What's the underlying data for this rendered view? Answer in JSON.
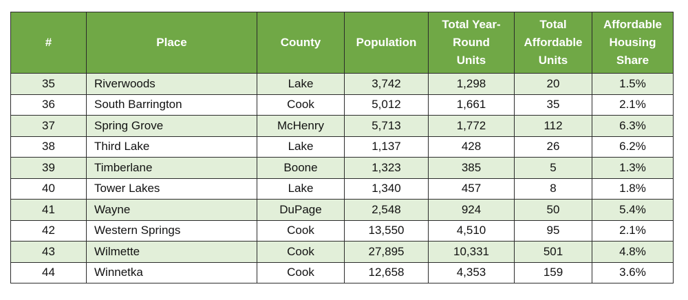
{
  "table": {
    "headers": [
      [
        "#"
      ],
      [
        "Place"
      ],
      [
        "County"
      ],
      [
        "Population"
      ],
      [
        "Total Year-",
        "Round",
        "Units"
      ],
      [
        "Total",
        "Affordable",
        "Units"
      ],
      [
        "Affordable",
        "Housing",
        "Share"
      ]
    ],
    "rows": [
      [
        "35",
        "Riverwoods",
        "Lake",
        "3,742",
        "1,298",
        "20",
        "1.5%"
      ],
      [
        "36",
        "South Barrington",
        "Cook",
        "5,012",
        "1,661",
        "35",
        "2.1%"
      ],
      [
        "37",
        "Spring Grove",
        "McHenry",
        "5,713",
        "1,772",
        "112",
        "6.3%"
      ],
      [
        "38",
        "Third Lake",
        "Lake",
        "1,137",
        "428",
        "26",
        "6.2%"
      ],
      [
        "39",
        "Timberlane",
        "Boone",
        "1,323",
        "385",
        "5",
        "1.3%"
      ],
      [
        "40",
        "Tower Lakes",
        "Lake",
        "1,340",
        "457",
        "8",
        "1.8%"
      ],
      [
        "41",
        "Wayne",
        "DuPage",
        "2,548",
        "924",
        "50",
        "5.4%"
      ],
      [
        "42",
        "Western Springs",
        "Cook",
        "13,550",
        "4,510",
        "95",
        "2.1%"
      ],
      [
        "43",
        "Wilmette",
        "Cook",
        "27,895",
        "10,331",
        "501",
        "4.8%"
      ],
      [
        "44",
        "Winnetka",
        "Cook",
        "12,658",
        "4,353",
        "159",
        "3.6%"
      ]
    ]
  }
}
